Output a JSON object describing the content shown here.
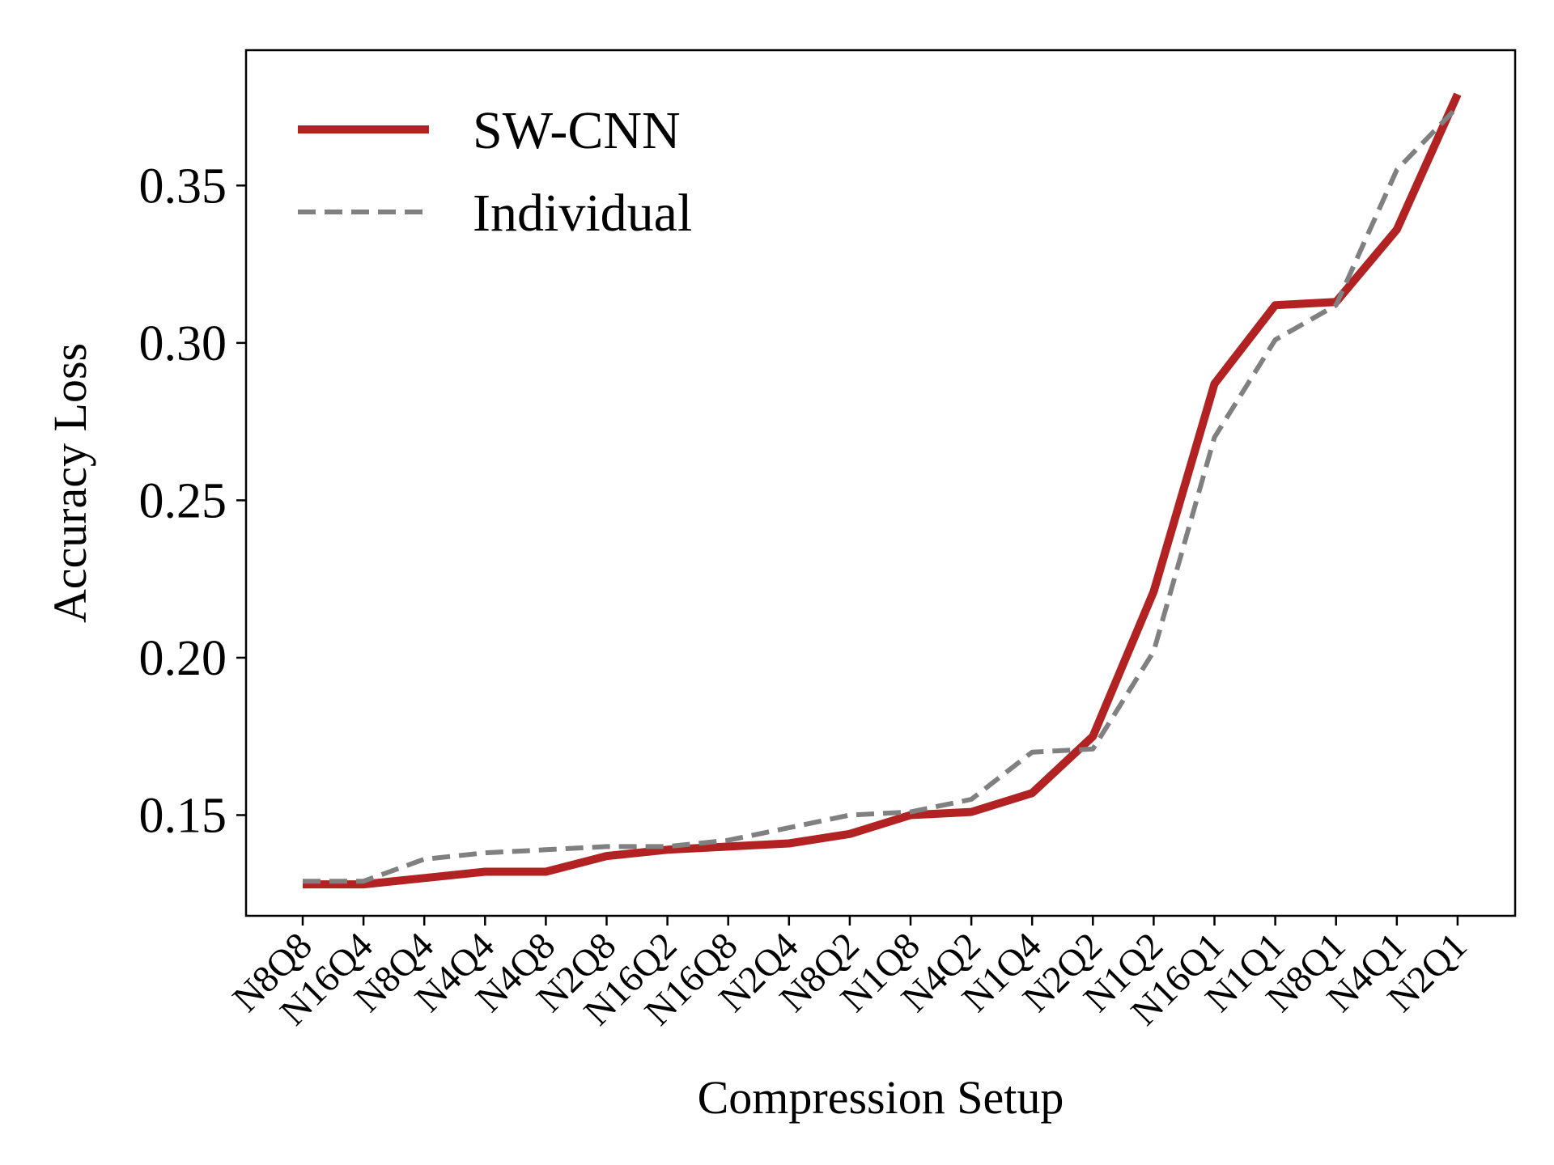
{
  "chart_data": {
    "type": "line",
    "title": "",
    "xlabel": "Compression Setup",
    "ylabel": "Accuracy Loss",
    "categories": [
      "N8Q8",
      "N16Q4",
      "N8Q4",
      "N4Q4",
      "N4Q8",
      "N2Q8",
      "N16Q2",
      "N16Q8",
      "N2Q4",
      "N8Q2",
      "N1Q8",
      "N4Q2",
      "N1Q4",
      "N2Q2",
      "N1Q2",
      "N16Q1",
      "N1Q1",
      "N8Q1",
      "N4Q1",
      "N2Q1"
    ],
    "ylim": [
      0.118,
      0.393
    ],
    "yticks": [
      0.15,
      0.2,
      0.25,
      0.3,
      0.35
    ],
    "ytick_labels": [
      "0.15",
      "0.20",
      "0.25",
      "0.30",
      "0.35"
    ],
    "grid": false,
    "legend_position": "top-left",
    "series": [
      {
        "name": "SW-CNN",
        "color": "#b22222",
        "style": "solid",
        "values": [
          0.128,
          0.128,
          0.13,
          0.132,
          0.132,
          0.137,
          0.139,
          0.14,
          0.141,
          0.144,
          0.15,
          0.151,
          0.157,
          0.175,
          0.221,
          0.287,
          0.312,
          0.313,
          0.336,
          0.379
        ]
      },
      {
        "name": "Individual",
        "color": "#808080",
        "style": "dashed",
        "values": [
          0.129,
          0.129,
          0.136,
          0.138,
          0.139,
          0.14,
          0.14,
          0.142,
          0.146,
          0.15,
          0.151,
          0.155,
          0.17,
          0.171,
          0.202,
          0.27,
          0.301,
          0.312,
          0.355,
          0.375
        ]
      }
    ]
  }
}
